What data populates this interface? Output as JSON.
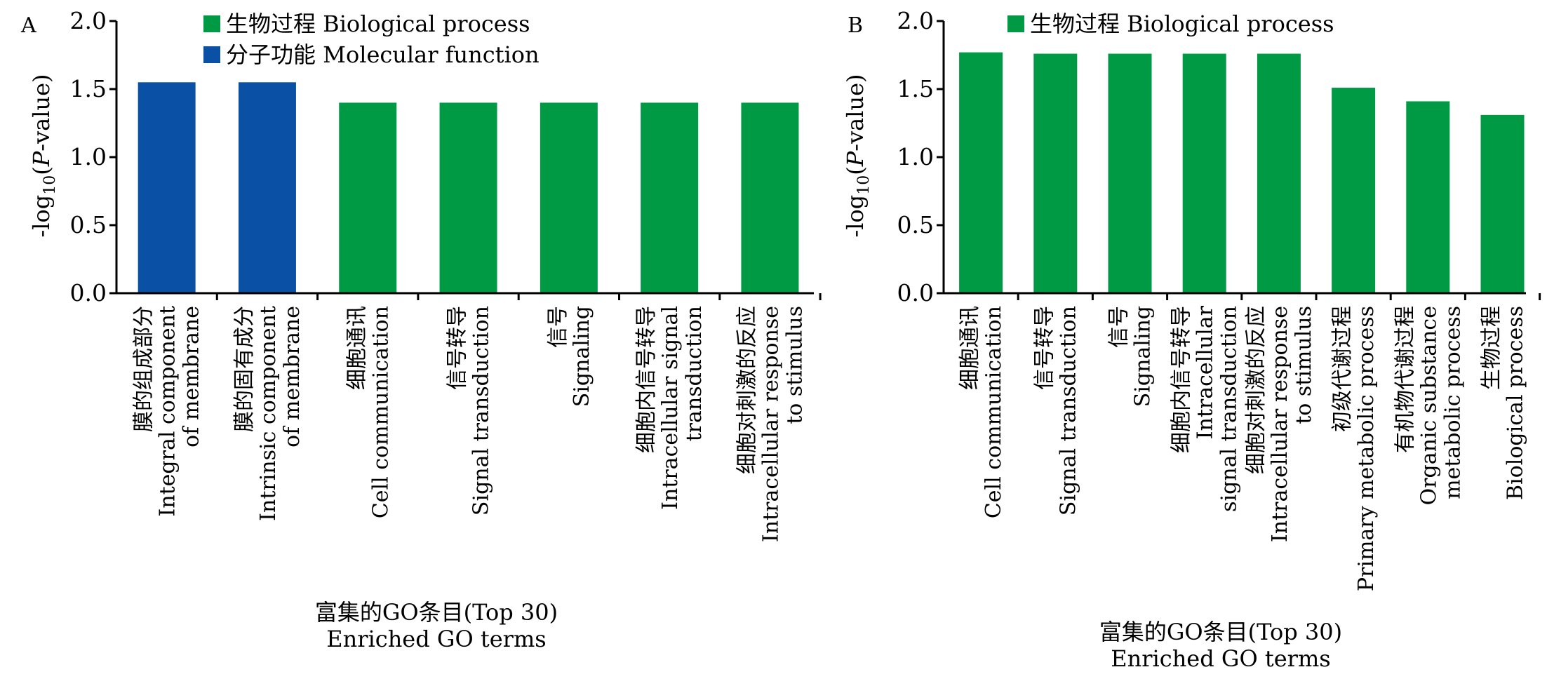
{
  "chart_data": [
    {
      "panel": "A",
      "type": "bar",
      "ylabel_parts": [
        "-log",
        "10",
        "(",
        "P",
        "-value)"
      ],
      "xlabel_lines": [
        "富集的GO条目(Top 30)",
        "Enriched GO terms"
      ],
      "ylim": [
        0,
        2.0
      ],
      "yticks": [
        "0.0",
        "0.5",
        "1.0",
        "1.5",
        "2.0"
      ],
      "legend": [
        {
          "label": "生物过程 Biological process",
          "color": "#009a44"
        },
        {
          "label": "分子功能 Molecular function",
          "color": "#0a51a5"
        }
      ],
      "bars": [
        {
          "lines": [
            "膜的组成部分",
            "Integral component",
            "of membrane"
          ],
          "value": 1.55,
          "series": "分子功能 Molecular function",
          "color": "#0a51a5"
        },
        {
          "lines": [
            "膜的固有成分",
            "Intrinsic component",
            "of membrane"
          ],
          "value": 1.55,
          "series": "分子功能 Molecular function",
          "color": "#0a51a5"
        },
        {
          "lines": [
            "细胞通讯",
            "Cell communication"
          ],
          "value": 1.4,
          "series": "生物过程 Biological process",
          "color": "#009a44"
        },
        {
          "lines": [
            "信号转导",
            "Signal transduction"
          ],
          "value": 1.4,
          "series": "生物过程 Biological process",
          "color": "#009a44"
        },
        {
          "lines": [
            "信号",
            "Signaling"
          ],
          "value": 1.4,
          "series": "生物过程 Biological process",
          "color": "#009a44"
        },
        {
          "lines": [
            "细胞内信号转导",
            "Intracellular signal",
            "transduction"
          ],
          "value": 1.4,
          "series": "生物过程 Biological process",
          "color": "#009a44"
        },
        {
          "lines": [
            "细胞对刺激的反应",
            "Intracellular response",
            "to stimulus"
          ],
          "value": 1.4,
          "series": "生物过程 Biological process",
          "color": "#009a44"
        }
      ]
    },
    {
      "panel": "B",
      "type": "bar",
      "ylabel_parts": [
        "-log",
        "10",
        "(",
        "P",
        "-value)"
      ],
      "xlabel_lines": [
        "富集的GO条目(Top 30)",
        "Enriched GO terms"
      ],
      "ylim": [
        0,
        2.0
      ],
      "yticks": [
        "0.0",
        "0.5",
        "1.0",
        "1.5",
        "2.0"
      ],
      "legend": [
        {
          "label": "生物过程 Biological process",
          "color": "#009a44"
        }
      ],
      "bars": [
        {
          "lines": [
            "细胞通讯",
            "Cell communication"
          ],
          "value": 1.77,
          "series": "生物过程 Biological process",
          "color": "#009a44"
        },
        {
          "lines": [
            "信号转导",
            "Signal transduction"
          ],
          "value": 1.76,
          "series": "生物过程 Biological process",
          "color": "#009a44"
        },
        {
          "lines": [
            "信号",
            "Signaling"
          ],
          "value": 1.76,
          "series": "生物过程 Biological process",
          "color": "#009a44"
        },
        {
          "lines": [
            "细胞内信号转导",
            "Intracellular",
            "signal transduction"
          ],
          "value": 1.76,
          "series": "生物过程 Biological process",
          "color": "#009a44"
        },
        {
          "lines": [
            "细胞对刺激的反应",
            "Intracellular response",
            "to stimulus"
          ],
          "value": 1.76,
          "series": "生物过程 Biological process",
          "color": "#009a44"
        },
        {
          "lines": [
            "初级代谢过程",
            "Primary metabolic process"
          ],
          "value": 1.51,
          "series": "生物过程 Biological process",
          "color": "#009a44"
        },
        {
          "lines": [
            "有机物代谢过程",
            "Organic substance",
            "metabolic process"
          ],
          "value": 1.41,
          "series": "生物过程 Biological process",
          "color": "#009a44"
        },
        {
          "lines": [
            "生物过程",
            "Biological process"
          ],
          "value": 1.31,
          "series": "生物过程 Biological process",
          "color": "#009a44"
        }
      ]
    }
  ]
}
